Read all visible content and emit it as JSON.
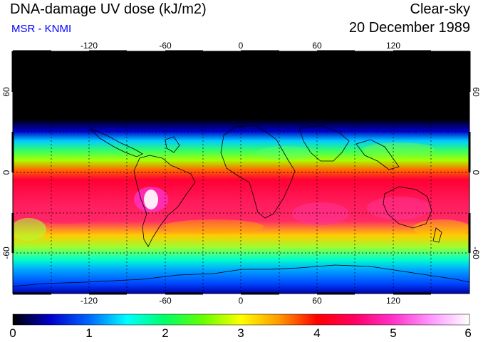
{
  "header": {
    "title": "DNA-damage UV dose (kJ/m2)",
    "subtitle": "MSR - KNMI",
    "condition": "Clear-sky",
    "date": "20 December 1989"
  },
  "map": {
    "lon_ticks": [
      "-120",
      "-60",
      "0",
      "60",
      "120"
    ],
    "lat_ticks": [
      "60",
      "0",
      "-60"
    ]
  },
  "colorbar": {
    "ticks": [
      "0",
      "1",
      "2",
      "3",
      "4",
      "5",
      "6"
    ],
    "min": 0,
    "max": 6,
    "unit": "kJ/m2",
    "stops": [
      "#000000",
      "#0000cc",
      "#0066ff",
      "#00ffff",
      "#00ff66",
      "#66ff00",
      "#ffff00",
      "#ff9900",
      "#ff0000",
      "#ff0066",
      "#ff33cc",
      "#ff99ff",
      "#ffffff"
    ]
  }
}
